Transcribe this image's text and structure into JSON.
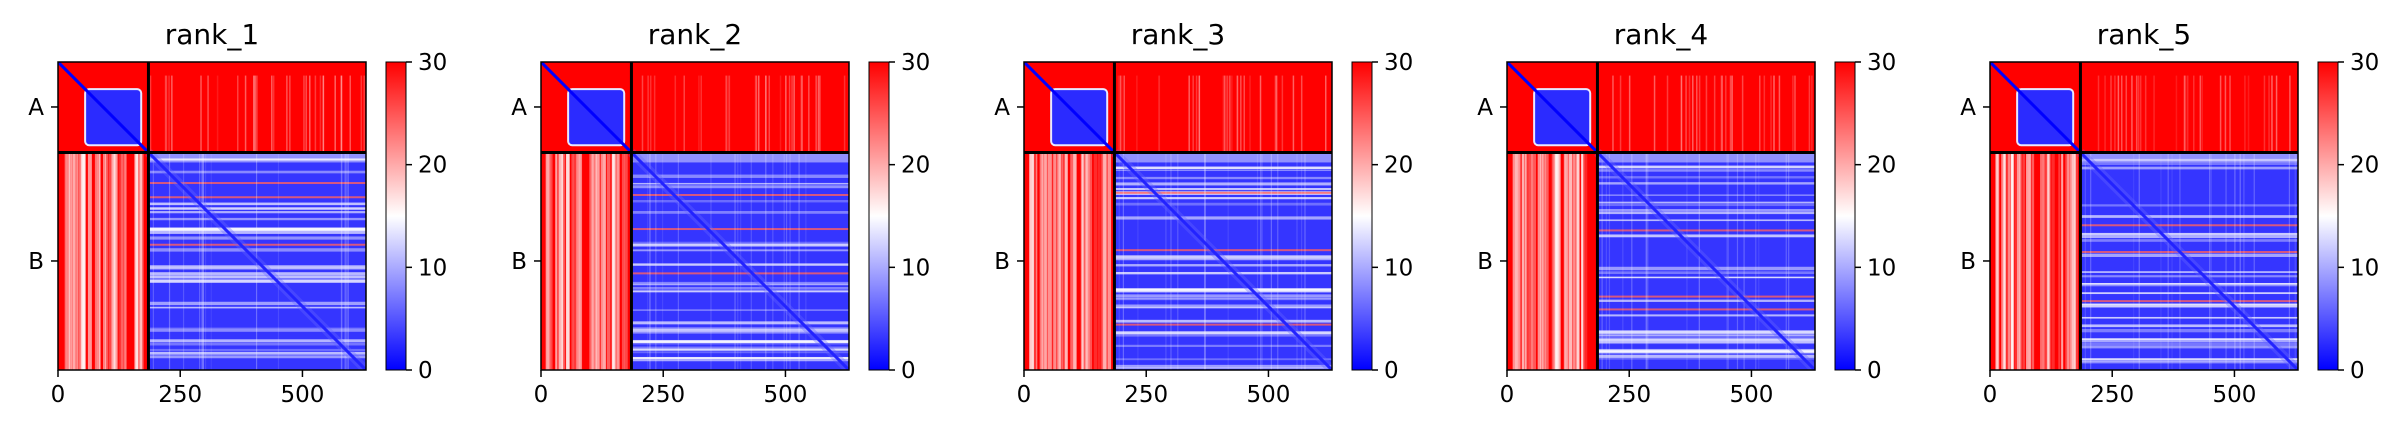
{
  "chart_data": {
    "type": "heatmap",
    "colormap": [
      "#0000ff",
      "#ffffff",
      "#ff0000"
    ],
    "color_range": [
      0,
      30
    ],
    "colorbar_ticks": [
      0,
      10,
      20,
      30
    ],
    "x_ticks": [
      0,
      250,
      500
    ],
    "x_range": [
      0,
      630
    ],
    "chain_break": 185,
    "chains": [
      {
        "label": "A",
        "center": 92
      },
      {
        "label": "B",
        "center": 407
      }
    ],
    "panels": [
      {
        "title": "rank_1"
      },
      {
        "title": "rank_2"
      },
      {
        "title": "rank_3"
      },
      {
        "title": "rank_4"
      },
      {
        "title": "rank_5"
      }
    ]
  }
}
